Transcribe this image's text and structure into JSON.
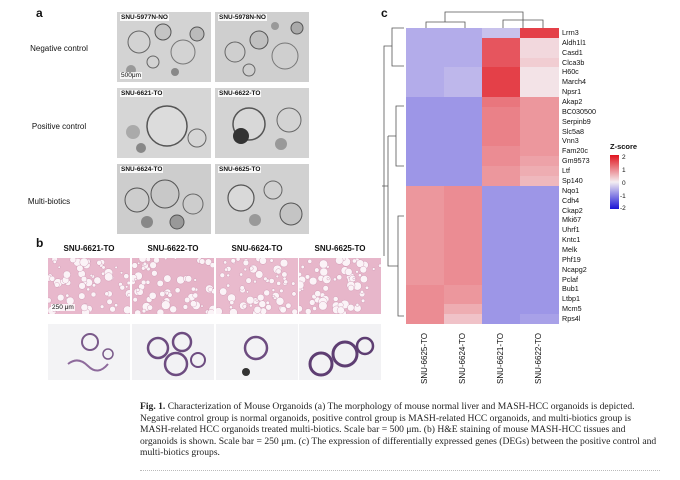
{
  "panel_a": {
    "letter": "a",
    "rows": [
      {
        "label": "Negative control",
        "tiles": [
          "SNU-5977N-NO",
          "SNU-5978N-NO"
        ]
      },
      {
        "label": "Positive control",
        "tiles": [
          "SNU-6621-TO",
          "SNU-6622-TO"
        ]
      },
      {
        "label": "Multi-biotics",
        "tiles": [
          "SNU-6624-TO",
          "SNU-6625-TO"
        ]
      }
    ],
    "scale_bar": "500μm"
  },
  "panel_b": {
    "letter": "b",
    "columns": [
      "SNU-6621-TO",
      "SNU-6622-TO",
      "SNU-6624-TO",
      "SNU-6625-TO"
    ],
    "scale_bar": "250 μm"
  },
  "panel_c": {
    "letter": "c",
    "samples": [
      "SNU-6625-TO",
      "SNU-6624-TO",
      "SNU-6621-TO",
      "SNU-6622-TO"
    ],
    "genes": [
      "Lrrn3",
      "Aldh1l1",
      "Casd1",
      "Clca3b",
      "H60c",
      "March4",
      "Npsr1",
      "Akap2",
      "BC030500",
      "Serpinb9",
      "Slc5a8",
      "Vnn3",
      "Fam20c",
      "Gm9573",
      "Ltf",
      "Sp140",
      "Nqo1",
      "Cdh4",
      "Ckap2",
      "Mki67",
      "Uhrf1",
      "Kntc1",
      "Melk",
      "Phf19",
      "Ncapg2",
      "Pclaf",
      "Bub1",
      "Ltbp1",
      "Mcm5",
      "Rps4l"
    ],
    "legend": {
      "title": "Z-score",
      "ticks": [
        "2",
        "1",
        "0",
        "-1",
        "-2"
      ]
    },
    "colors": {
      "high": "#e0141e",
      "mid": "#f4eef2",
      "low": "#1a12d6"
    }
  },
  "chart_data": {
    "type": "heatmap",
    "columns": [
      "SNU-6625-TO",
      "SNU-6624-TO",
      "SNU-6621-TO",
      "SNU-6622-TO"
    ],
    "rows": [
      "Lrrn3",
      "Aldh1l1",
      "Casd1",
      "Clca3b",
      "H60c",
      "March4",
      "Npsr1",
      "Akap2",
      "BC030500",
      "Serpinb9",
      "Slc5a8",
      "Vnn3",
      "Fam20c",
      "Gm9573",
      "Ltf",
      "Sp140",
      "Nqo1",
      "Cdh4",
      "Ckap2",
      "Mki67",
      "Uhrf1",
      "Kntc1",
      "Melk",
      "Phf19",
      "Ncapg2",
      "Pclaf",
      "Bub1",
      "Ltbp1",
      "Mcm5",
      "Rps4l"
    ],
    "values": [
      [
        -0.6,
        -0.6,
        -0.4,
        1.6
      ],
      [
        -0.6,
        -0.6,
        1.4,
        0.2
      ],
      [
        -0.6,
        -0.6,
        1.4,
        0.2
      ],
      [
        -0.6,
        -0.6,
        1.4,
        0.3
      ],
      [
        -0.6,
        -0.5,
        1.6,
        0.1
      ],
      [
        -0.6,
        -0.5,
        1.6,
        0.1
      ],
      [
        -0.6,
        -0.5,
        1.6,
        0.1
      ],
      [
        -0.8,
        -0.8,
        1.1,
        0.8
      ],
      [
        -0.8,
        -0.8,
        1.0,
        0.8
      ],
      [
        -0.8,
        -0.8,
        1.0,
        0.8
      ],
      [
        -0.8,
        -0.8,
        1.0,
        0.8
      ],
      [
        -0.8,
        -0.8,
        1.0,
        0.8
      ],
      [
        -0.8,
        -0.8,
        0.9,
        0.8
      ],
      [
        -0.8,
        -0.8,
        0.9,
        0.7
      ],
      [
        -0.8,
        -0.8,
        0.8,
        0.6
      ],
      [
        -0.8,
        -0.8,
        0.8,
        0.5
      ],
      [
        0.8,
        0.9,
        -0.8,
        -0.8
      ],
      [
        0.8,
        0.9,
        -0.8,
        -0.8
      ],
      [
        0.8,
        0.9,
        -0.8,
        -0.8
      ],
      [
        0.8,
        0.9,
        -0.8,
        -0.8
      ],
      [
        0.8,
        0.9,
        -0.8,
        -0.8
      ],
      [
        0.8,
        0.9,
        -0.8,
        -0.8
      ],
      [
        0.8,
        0.9,
        -0.8,
        -0.8
      ],
      [
        0.8,
        0.9,
        -0.8,
        -0.8
      ],
      [
        0.8,
        0.9,
        -0.8,
        -0.8
      ],
      [
        0.8,
        0.9,
        -0.8,
        -0.8
      ],
      [
        0.9,
        0.8,
        -0.8,
        -0.8
      ],
      [
        0.9,
        0.8,
        -0.8,
        -0.8
      ],
      [
        0.9,
        0.6,
        -0.8,
        -0.8
      ],
      [
        0.9,
        0.4,
        -0.8,
        -0.7
      ]
    ],
    "zlim": [
      -2,
      2
    ],
    "legend_title": "Z-score"
  },
  "caption": {
    "figno": "Fig. 1.",
    "text": " Characterization of Mouse Organoids (a) The morphology of mouse normal liver and MASH-HCC organoids is depicted. Negative control group is normal organoids, positive control group is MASH-related HCC organoids, and multi-biotics group is MASH-related HCC organoids treated multi-biotics. Scale bar = 500 μm. (b) H&E staining of mouse MASH-HCC tissues and organoids is shown. Scale bar = 250 μm. (c) The expression of differentially expressed genes (DEGs) between the positive control and multi-biotics groups."
  }
}
